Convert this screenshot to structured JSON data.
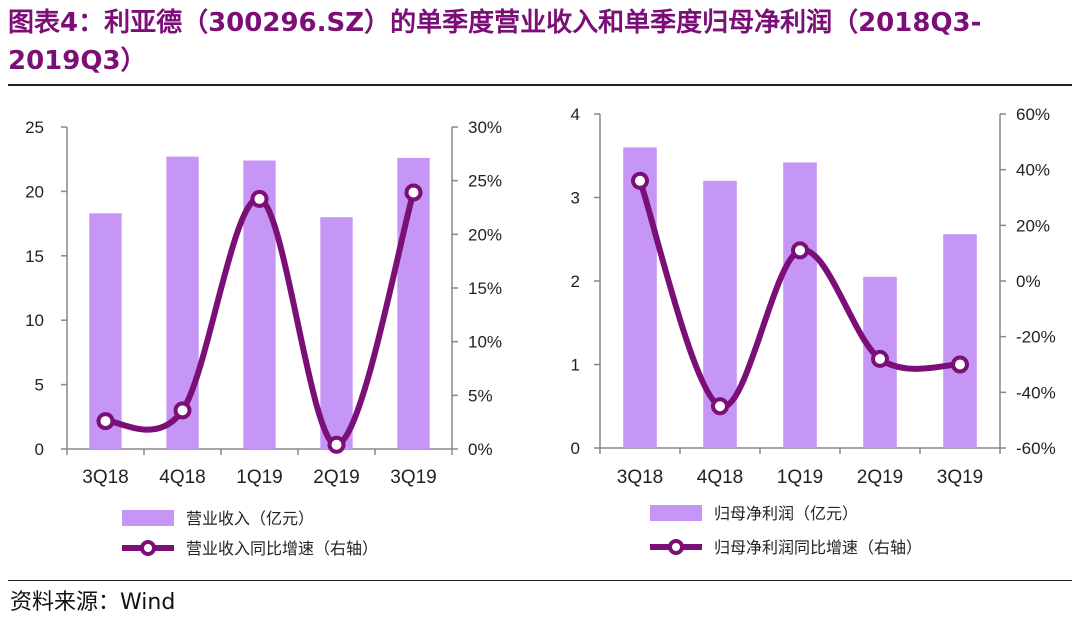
{
  "title": "图表4：利亚德（300296.SZ）的单季度营业收入和单季度归母净利润（2018Q3-2019Q3）",
  "source": "资料来源：Wind",
  "colors": {
    "bar": "#c596f5",
    "line": "#7b0f77",
    "title": "#7b0f77"
  },
  "chart_data": [
    {
      "type": "bar",
      "categories": [
        "3Q18",
        "4Q18",
        "1Q19",
        "2Q19",
        "3Q19"
      ],
      "series": [
        {
          "name": "营业收入（亿元）",
          "type": "bar",
          "axis": "left",
          "values": [
            18.3,
            22.7,
            22.4,
            18.0,
            22.6
          ]
        },
        {
          "name": "营业收入同比增速（右轴）",
          "type": "line",
          "axis": "right",
          "values": [
            2.6,
            3.6,
            23.3,
            0.4,
            23.9
          ]
        }
      ],
      "left_axis": {
        "ylim": [
          0,
          25
        ],
        "ticks": [
          "0",
          "5",
          "10",
          "15",
          "20",
          "25"
        ]
      },
      "right_axis": {
        "ylim": [
          0,
          30
        ],
        "unit": "%",
        "ticks": [
          "0%",
          "5%",
          "10%",
          "15%",
          "20%",
          "25%",
          "30%"
        ]
      },
      "legend_placement": "bottom"
    },
    {
      "type": "bar",
      "categories": [
        "3Q18",
        "4Q18",
        "1Q19",
        "2Q19",
        "3Q19"
      ],
      "series": [
        {
          "name": "归母净利润（亿元）",
          "type": "bar",
          "axis": "left",
          "values": [
            3.6,
            3.2,
            3.42,
            2.05,
            2.56
          ]
        },
        {
          "name": "归母净利润同比增速（右轴）",
          "type": "line",
          "axis": "right",
          "values": [
            36,
            -45,
            11,
            -28,
            -30
          ]
        }
      ],
      "left_axis": {
        "ylim": [
          0,
          4
        ],
        "ticks": [
          "0",
          "1",
          "2",
          "3",
          "4"
        ]
      },
      "right_axis": {
        "ylim": [
          -60,
          60
        ],
        "unit": "%",
        "ticks": [
          "-60%",
          "-40%",
          "-20%",
          "0%",
          "20%",
          "40%",
          "60%"
        ]
      },
      "legend_placement": "bottom"
    }
  ]
}
